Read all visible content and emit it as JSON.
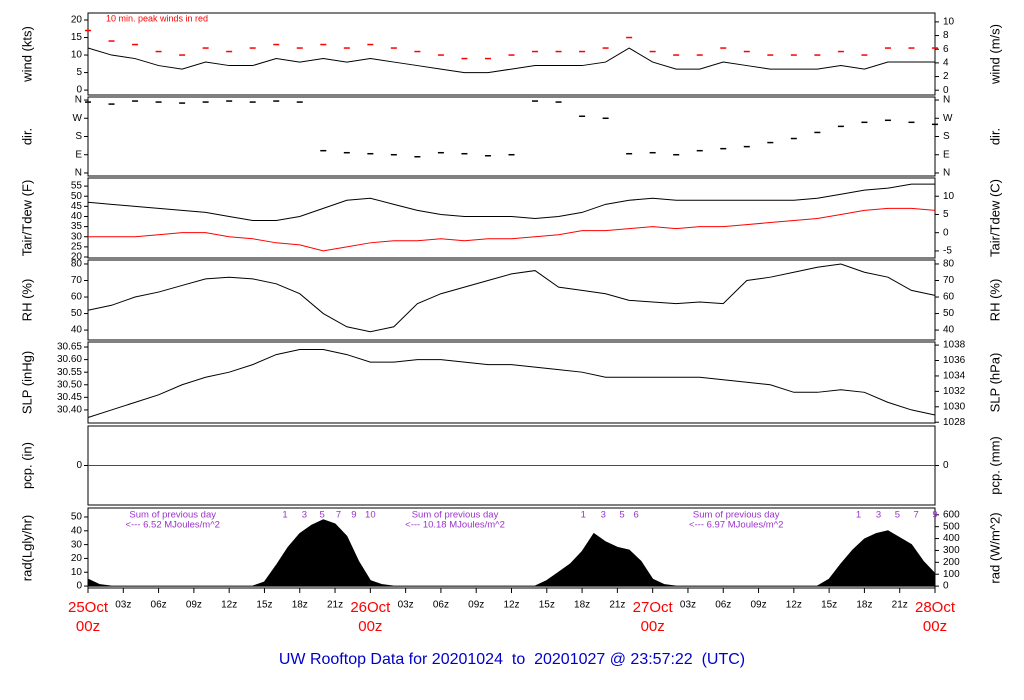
{
  "footer": "UW Rooftop Data for 20201024  to  20201027 @ 23:57:22  (UTC)",
  "chart_data": [
    {
      "type": "line",
      "ylabel": "wind (kts)",
      "y2label": "wind (m/s)",
      "note": "10 min. peak winds in red",
      "note_color": "#ff0000",
      "xlim": [
        0,
        72
      ],
      "ylim": [
        -1.4,
        22
      ],
      "yticks": [
        0,
        5,
        10,
        15,
        20
      ],
      "y2lim": [
        -0.7,
        11.3
      ],
      "y2ticks": [
        0,
        2,
        4,
        6,
        8,
        10
      ],
      "x": [
        0,
        2,
        4,
        6,
        8,
        10,
        12,
        14,
        16,
        18,
        20,
        22,
        24,
        26,
        28,
        30,
        32,
        34,
        36,
        38,
        40,
        42,
        44,
        46,
        48,
        50,
        52,
        54,
        56,
        58,
        60,
        62,
        64,
        66,
        68,
        70,
        72
      ],
      "series": [
        {
          "color": "#000000",
          "values": [
            12,
            10,
            9,
            7,
            6,
            8,
            7,
            7,
            9,
            8,
            9,
            8,
            9,
            8,
            7,
            6,
            5,
            5,
            6,
            7,
            7,
            7,
            8,
            12,
            8,
            6,
            6,
            8,
            7,
            6,
            6,
            6,
            7,
            6,
            8,
            8,
            8
          ]
        },
        {
          "type": "scatter",
          "color": "#ff0000",
          "values": [
            17,
            14,
            13,
            11,
            10,
            12,
            11,
            12,
            13,
            12,
            13,
            12,
            13,
            12,
            11,
            10,
            9,
            9,
            10,
            11,
            11,
            11,
            12,
            15,
            11,
            10,
            10,
            12,
            11,
            10,
            10,
            10,
            11,
            10,
            12,
            12,
            12
          ]
        }
      ]
    },
    {
      "type": "scatter",
      "ylabel": "dir.",
      "y2label": "dir.",
      "xlim": [
        0,
        72
      ],
      "ylim": [
        -15,
        375
      ],
      "yticks": [
        {
          "value": 0,
          "label": "N"
        },
        {
          "value": 90,
          "label": "E"
        },
        {
          "value": 180,
          "label": "S"
        },
        {
          "value": 270,
          "label": "W"
        },
        {
          "value": 360,
          "label": "N"
        }
      ],
      "y2lim": [
        -15,
        375
      ],
      "y2ticks": [
        {
          "value": 0,
          "label": "N"
        },
        {
          "value": 90,
          "label": "E"
        },
        {
          "value": 180,
          "label": "S"
        },
        {
          "value": 270,
          "label": "W"
        },
        {
          "value": 360,
          "label": "N"
        }
      ],
      "x": [
        0,
        2,
        4,
        6,
        8,
        10,
        12,
        14,
        16,
        18,
        20,
        22,
        24,
        26,
        28,
        30,
        32,
        34,
        36,
        38,
        40,
        42,
        44,
        46,
        48,
        50,
        52,
        54,
        56,
        58,
        60,
        62,
        64,
        66,
        68,
        70,
        72
      ],
      "series": [
        {
          "color": "#000000",
          "values": [
            350,
            340,
            355,
            350,
            345,
            350,
            355,
            350,
            355,
            350,
            110,
            100,
            95,
            90,
            80,
            100,
            95,
            85,
            90,
            355,
            350,
            280,
            270,
            95,
            100,
            90,
            110,
            120,
            130,
            150,
            170,
            200,
            230,
            250,
            260,
            250,
            240
          ]
        }
      ]
    },
    {
      "type": "line",
      "ylabel": "Tair/Tdew (F)",
      "y2label": "Tair/Tdew (C)",
      "xlim": [
        0,
        72
      ],
      "ylim": [
        19.5,
        59
      ],
      "yticks": [
        20,
        25,
        30,
        35,
        40,
        45,
        50,
        55
      ],
      "y2lim": [
        -6.94,
        15
      ],
      "y2ticks": [
        -5,
        0,
        5,
        10
      ],
      "x": [
        0,
        2,
        4,
        6,
        8,
        10,
        12,
        14,
        16,
        18,
        20,
        22,
        24,
        26,
        28,
        30,
        32,
        34,
        36,
        38,
        40,
        42,
        44,
        46,
        48,
        50,
        52,
        54,
        56,
        58,
        60,
        62,
        64,
        66,
        68,
        70,
        72
      ],
      "series": [
        {
          "color": "#000000",
          "values": [
            47,
            46,
            45,
            44,
            43,
            42,
            40,
            38,
            38,
            40,
            44,
            48,
            49,
            46,
            43,
            41,
            40,
            40,
            40,
            39,
            40,
            42,
            46,
            48,
            49,
            48,
            48,
            48,
            48,
            48,
            48,
            49,
            51,
            53,
            54,
            56,
            56
          ]
        },
        {
          "color": "#ff0000",
          "values": [
            30,
            30,
            30,
            31,
            32,
            32,
            30,
            29,
            27,
            26,
            23,
            25,
            27,
            28,
            28,
            29,
            28,
            29,
            29,
            30,
            31,
            33,
            33,
            34,
            35,
            34,
            35,
            35,
            36,
            37,
            38,
            39,
            41,
            43,
            44,
            44,
            43
          ]
        }
      ]
    },
    {
      "type": "line",
      "ylabel": "RH (%)",
      "y2label": "RH (%)",
      "xlim": [
        0,
        72
      ],
      "ylim": [
        34,
        82.4
      ],
      "yticks": [
        40,
        50,
        60,
        70,
        80
      ],
      "y2lim": [
        34,
        82.4
      ],
      "y2ticks": [
        40,
        50,
        60,
        70,
        80
      ],
      "x": [
        0,
        2,
        4,
        6,
        8,
        10,
        12,
        14,
        16,
        18,
        20,
        22,
        24,
        26,
        28,
        30,
        32,
        34,
        36,
        38,
        40,
        42,
        44,
        46,
        48,
        50,
        52,
        54,
        56,
        58,
        60,
        62,
        64,
        66,
        68,
        70,
        72
      ],
      "series": [
        {
          "color": "#000000",
          "values": [
            52,
            55,
            60,
            63,
            67,
            71,
            72,
            71,
            68,
            62,
            50,
            42,
            39,
            42,
            56,
            62,
            66,
            70,
            74,
            76,
            66,
            64,
            62,
            58,
            57,
            56,
            57,
            56,
            70,
            72,
            75,
            78,
            80,
            75,
            72,
            64,
            61
          ]
        }
      ]
    },
    {
      "type": "line",
      "ylabel": "SLP (inHg)",
      "y2label": "SLP (hPa)",
      "xlim": [
        0,
        72
      ],
      "ylim": [
        30.348,
        30.67
      ],
      "yticks": [
        {
          "value": 30.4,
          "label": "30.40"
        },
        30.45,
        {
          "value": 30.5,
          "label": "30.50"
        },
        30.55,
        {
          "value": 30.6,
          "label": "30.60"
        },
        30.65
      ],
      "y2lim": [
        1027.9,
        1038.4
      ],
      "y2ticks": [
        1028,
        1030,
        1032,
        1034,
        1036,
        1038
      ],
      "x": [
        0,
        2,
        4,
        6,
        8,
        10,
        12,
        14,
        16,
        18,
        20,
        22,
        24,
        26,
        28,
        30,
        32,
        34,
        36,
        38,
        40,
        42,
        44,
        46,
        48,
        50,
        52,
        54,
        56,
        58,
        60,
        62,
        64,
        66,
        68,
        70,
        72
      ],
      "series": [
        {
          "color": "#000000",
          "values": [
            30.37,
            30.4,
            30.43,
            30.46,
            30.5,
            30.53,
            30.55,
            30.58,
            30.62,
            30.64,
            30.64,
            30.62,
            30.59,
            30.59,
            30.6,
            30.6,
            30.59,
            30.58,
            30.58,
            30.57,
            30.56,
            30.55,
            30.53,
            30.53,
            30.53,
            30.53,
            30.53,
            30.52,
            30.51,
            30.5,
            30.47,
            30.47,
            30.48,
            30.47,
            30.43,
            30.4,
            30.38
          ]
        }
      ]
    },
    {
      "type": "line",
      "ylabel": "pcp. (in)",
      "y2label": "pcp. (mm)",
      "xlim": [
        0,
        72
      ],
      "ylim": [
        -1,
        1
      ],
      "yticks": [
        0
      ],
      "y2lim": [
        -1,
        1
      ],
      "y2ticks": [
        0
      ],
      "x": [
        0,
        2,
        4,
        6,
        8,
        10,
        12,
        14,
        16,
        18,
        20,
        22,
        24,
        26,
        28,
        30,
        32,
        34,
        36,
        38,
        40,
        42,
        44,
        46,
        48,
        50,
        52,
        54,
        56,
        58,
        60,
        62,
        64,
        66,
        68,
        70,
        72
      ],
      "series": [
        {
          "color": "#ff0000",
          "values": [
            0,
            0,
            0,
            0,
            0,
            0,
            0,
            0,
            0,
            0,
            0,
            0,
            0,
            0,
            0,
            0,
            0,
            0,
            0,
            0,
            0,
            0,
            0,
            0,
            0,
            0,
            0,
            0,
            0,
            0,
            0,
            0,
            0,
            0,
            0,
            0,
            0
          ]
        }
      ]
    },
    {
      "type": "area",
      "ylabel": "rad(Lgly/hr)",
      "y2label": "rad (W/m^2)",
      "xlim": [
        0,
        72
      ],
      "ylim": [
        -1.4,
        56.5
      ],
      "yticks": [
        0,
        10,
        20,
        30,
        40,
        50
      ],
      "y2lim": [
        -16,
        657
      ],
      "y2ticks": [
        0,
        100,
        200,
        300,
        400,
        500,
        600
      ],
      "x": [
        0,
        1,
        2,
        3,
        4,
        5,
        6,
        7,
        8,
        9,
        10,
        11,
        12,
        13,
        14,
        15,
        16,
        17,
        18,
        19,
        20,
        21,
        22,
        23,
        24,
        25,
        26,
        27,
        28,
        29,
        30,
        31,
        32,
        33,
        34,
        35,
        36,
        37,
        38,
        39,
        40,
        41,
        42,
        43,
        44,
        45,
        46,
        47,
        48,
        49,
        50,
        51,
        52,
        53,
        54,
        55,
        56,
        57,
        58,
        59,
        60,
        61,
        62,
        63,
        64,
        65,
        66,
        67,
        68,
        69,
        70,
        71,
        72
      ],
      "series": [
        {
          "color": "#000000",
          "values": [
            5,
            1,
            0,
            0,
            0,
            0,
            0,
            0,
            0,
            0,
            0,
            0,
            0,
            0,
            0,
            3,
            15,
            28,
            38,
            44,
            48,
            45,
            36,
            18,
            4,
            1,
            0,
            0,
            0,
            0,
            0,
            0,
            0,
            0,
            0,
            0,
            0,
            0,
            0,
            4,
            10,
            16,
            25,
            38,
            32,
            28,
            26,
            18,
            5,
            1,
            0,
            0,
            0,
            0,
            0,
            0,
            0,
            0,
            0,
            0,
            0,
            0,
            0,
            5,
            16,
            26,
            34,
            38,
            40,
            35,
            30,
            18,
            9
          ]
        }
      ],
      "annotation_color": "#9933cc",
      "sums": [
        {
          "value": 7.2,
          "label": "Sum of previous day",
          "sublabel": "<--- 6.52 MJoules/m^2"
        },
        {
          "value": 31.2,
          "label": "Sum of previous day",
          "sublabel": "<--- 10.18 MJoules/m^2"
        },
        {
          "value": 55.1,
          "label": "Sum of previous day",
          "sublabel": "<--- 6.97 MJoules/m^2"
        }
      ],
      "top_ticks": [
        {
          "value": 16.75,
          "label": "1"
        },
        {
          "value": 18.4,
          "label": "3"
        },
        {
          "value": 19.9,
          "label": "5"
        },
        {
          "value": 21.3,
          "label": "7"
        },
        {
          "value": 22.6,
          "label": "9"
        },
        {
          "value": 24,
          "label": "10"
        },
        {
          "value": 42.1,
          "label": "1"
        },
        {
          "value": 43.8,
          "label": "3"
        },
        {
          "value": 45.4,
          "label": "5"
        },
        {
          "value": 46.6,
          "label": "6"
        },
        {
          "value": 65.5,
          "label": "1"
        },
        {
          "value": 67.2,
          "label": "3"
        },
        {
          "value": 68.8,
          "label": "5"
        },
        {
          "value": 70.4,
          "label": "7"
        },
        {
          "value": 72,
          "label": "9"
        }
      ],
      "day_color": "#ff0000",
      "day_ticks": [
        {
          "value": 0,
          "label": "25Oct"
        },
        {
          "value": 24,
          "label": "26Oct"
        },
        {
          "value": 48,
          "label": "27Oct"
        },
        {
          "value": 72,
          "label": "28Oct"
        }
      ],
      "xticks": [
        {
          "value": 0,
          "label": "00z"
        },
        {
          "value": 3,
          "label": "03z"
        },
        {
          "value": 6,
          "label": "06z"
        },
        {
          "value": 9,
          "label": "09z"
        },
        {
          "value": 12,
          "label": "12z"
        },
        {
          "value": 15,
          "label": "15z"
        },
        {
          "value": 18,
          "label": "18z"
        },
        {
          "value": 21,
          "label": "21z"
        },
        {
          "value": 24,
          "label": "00z"
        },
        {
          "value": 27,
          "label": "03z"
        },
        {
          "value": 30,
          "label": "06z"
        },
        {
          "value": 33,
          "label": "09z"
        },
        {
          "value": 36,
          "label": "12z"
        },
        {
          "value": 39,
          "label": "15z"
        },
        {
          "value": 42,
          "label": "18z"
        },
        {
          "value": 45,
          "label": "21z"
        },
        {
          "value": 48,
          "label": "00z"
        },
        {
          "value": 51,
          "label": "03z"
        },
        {
          "value": 54,
          "label": "06z"
        },
        {
          "value": 57,
          "label": "09z"
        },
        {
          "value": 60,
          "label": "12z"
        },
        {
          "value": 63,
          "label": "15z"
        },
        {
          "value": 66,
          "label": "18z"
        },
        {
          "value": 69,
          "label": "21z"
        },
        {
          "value": 72,
          "label": "00z"
        }
      ]
    }
  ]
}
